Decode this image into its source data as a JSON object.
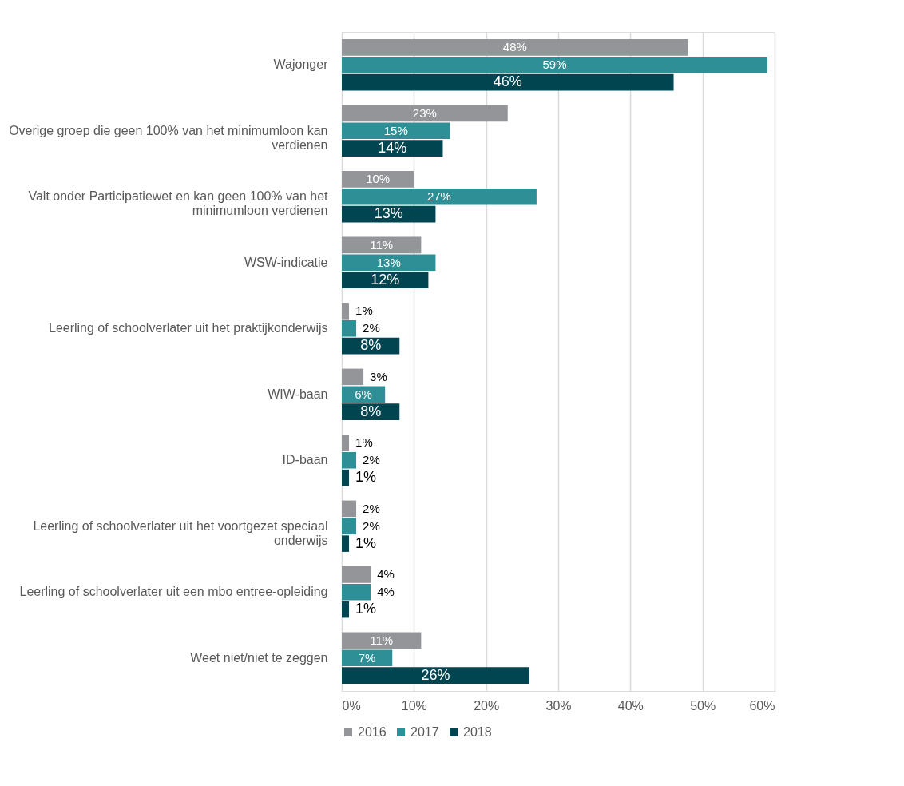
{
  "chart_data": {
    "type": "bar",
    "orientation": "horizontal",
    "categories": [
      "Wajonger",
      "Overige groep die geen 100% van het minimumloon kan verdienen",
      "Valt onder Participatiewet en kan geen 100% van het minimumloon verdienen",
      "WSW-indicatie",
      "Leerling of schoolverlater uit het praktijkonderwijs",
      "WIW-baan",
      "ID-baan",
      "Leerling of schoolverlater uit het voortgezet speciaal onderwijs",
      "Leerling of schoolverlater uit een mbo entree-opleiding",
      "Weet niet/niet te zeggen"
    ],
    "series": [
      {
        "name": "2016",
        "color": "#939598",
        "values": [
          48,
          23,
          10,
          11,
          1,
          3,
          1,
          2,
          4,
          11
        ],
        "value_labels": [
          "48%",
          "23%",
          "10%",
          "11%",
          "1%",
          "3%",
          "1%",
          "2%",
          "4%",
          "11%"
        ]
      },
      {
        "name": "2017",
        "color": "#2e8f96",
        "values": [
          59,
          15,
          27,
          13,
          2,
          6,
          2,
          2,
          4,
          7
        ],
        "value_labels": [
          "59%",
          "15%",
          "27%",
          "13%",
          "2%",
          "6%",
          "2%",
          "2%",
          "4%",
          "7%"
        ]
      },
      {
        "name": "2018",
        "color": "#004550",
        "values": [
          46,
          14,
          13,
          12,
          8,
          8,
          1,
          1,
          1,
          26
        ],
        "value_labels": [
          "46%",
          "14%",
          "13%",
          "12%",
          "8%",
          "8%",
          "1%",
          "1%",
          "1%",
          "26%"
        ]
      }
    ],
    "xlim": [
      0,
      60
    ],
    "xticks": [
      {
        "value": 0,
        "label": "0%"
      },
      {
        "value": 10,
        "label": "10%"
      },
      {
        "value": 20,
        "label": "20%"
      },
      {
        "value": 30,
        "label": "30%"
      },
      {
        "value": 40,
        "label": "40%"
      },
      {
        "value": 50,
        "label": "50%"
      },
      {
        "value": 60,
        "label": "60%"
      }
    ],
    "grid": "x",
    "legend": "bottom"
  }
}
